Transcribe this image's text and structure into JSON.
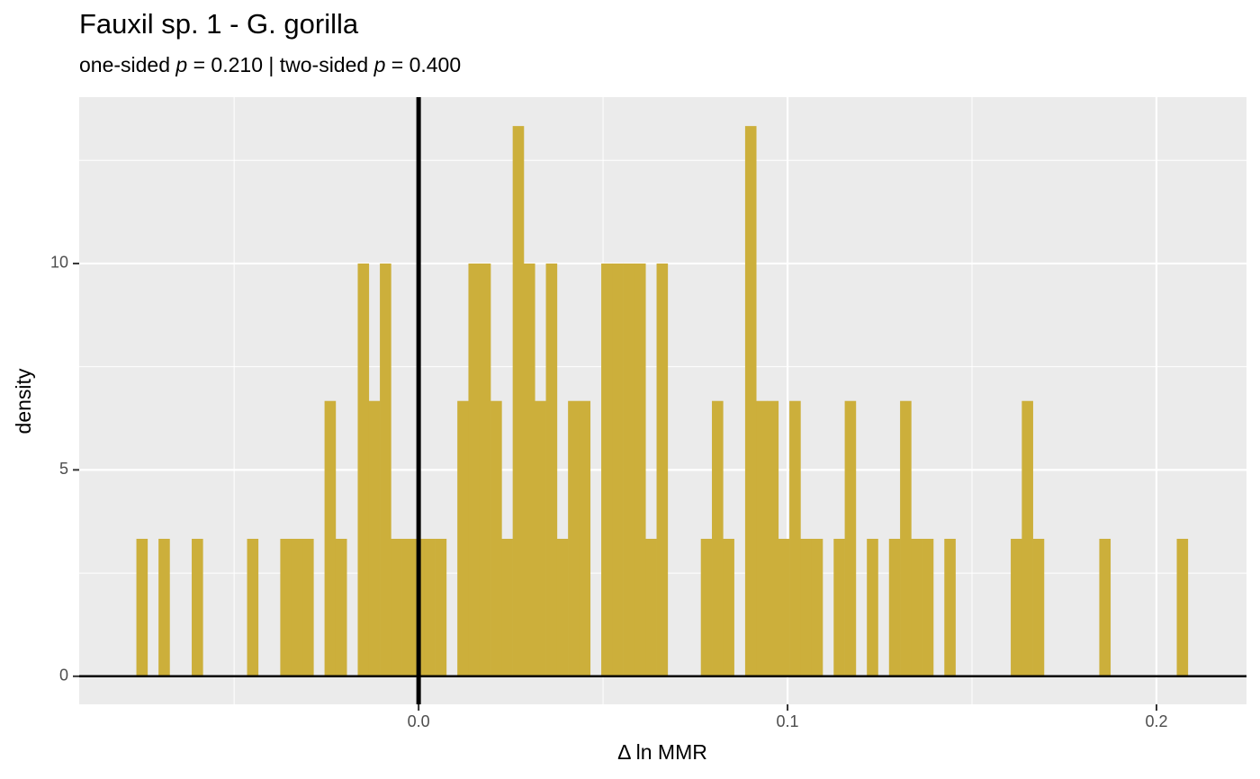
{
  "chart_data": {
    "type": "histogram",
    "title": "Fauxil sp. 1 - G. gorilla",
    "subtitle": [
      {
        "text": "one-sided ",
        "italic": false
      },
      {
        "text": "p",
        "italic": true
      },
      {
        "text": " = 0.210 | two-sided ",
        "italic": false
      },
      {
        "text": "p",
        "italic": true
      },
      {
        "text": " = 0.400",
        "italic": false
      }
    ],
    "x_label": "Δ ln MMR",
    "y_label": "density",
    "color": "#ccaf3b",
    "bins": [
      -0.0765,
      -0.0735,
      -0.0705,
      -0.0675,
      -0.0645,
      -0.0615,
      -0.0585,
      -0.0555,
      -0.0525,
      -0.0495,
      -0.0465,
      -0.0435,
      -0.0405,
      -0.0375,
      -0.0345,
      -0.0315,
      -0.0285,
      -0.0255,
      -0.0225,
      -0.0195,
      -0.0165,
      -0.0135,
      -0.0105,
      -0.0075,
      -0.0045,
      -0.0015,
      0.0015,
      0.0045,
      0.0075,
      0.0105,
      0.0135,
      0.0165,
      0.0195,
      0.0225,
      0.0255,
      0.0285,
      0.0315,
      0.0345,
      0.0375,
      0.0405,
      0.0435,
      0.0465,
      0.0495,
      0.0525,
      0.0555,
      0.0585,
      0.0615,
      0.0645,
      0.0675,
      0.0705,
      0.0735,
      0.0765,
      0.0795,
      0.0825,
      0.0855,
      0.0885,
      0.0915,
      0.0945,
      0.0975,
      0.1005,
      0.1035,
      0.1065,
      0.1095,
      0.1125,
      0.1155,
      0.1185,
      0.1215,
      0.1245,
      0.1275,
      0.1305,
      0.1335,
      0.1365,
      0.1395,
      0.1425,
      0.1455,
      0.1485,
      0.1515,
      0.1545,
      0.1575,
      0.1605,
      0.1635,
      0.1665,
      0.1695,
      0.1725,
      0.1755,
      0.1785,
      0.1815,
      0.1845,
      0.1875,
      0.1905,
      0.1935,
      0.1965,
      0.1995,
      0.2025,
      0.2055,
      0.2085
    ],
    "values": [
      3.33,
      0,
      3.33,
      0,
      0,
      3.33,
      0,
      0,
      0,
      0,
      3.33,
      0,
      0,
      3.33,
      3.33,
      3.33,
      0,
      6.67,
      3.33,
      0,
      10,
      6.67,
      10,
      3.33,
      3.33,
      3.33,
      3.33,
      3.33,
      0,
      6.67,
      10,
      10,
      6.67,
      3.33,
      13.33,
      10,
      6.67,
      10,
      3.33,
      6.67,
      6.67,
      0,
      10,
      10,
      10,
      10,
      3.33,
      10,
      0,
      0,
      0,
      3.33,
      6.67,
      3.33,
      0,
      13.33,
      6.67,
      6.67,
      3.33,
      6.67,
      3.33,
      3.33,
      0,
      3.33,
      6.67,
      0,
      3.33,
      0,
      3.33,
      6.67,
      3.33,
      3.33,
      0,
      3.33,
      0,
      0,
      0,
      0,
      0,
      3.33,
      6.67,
      3.33,
      0,
      0,
      0,
      0,
      0,
      3.33,
      0,
      0,
      0,
      0,
      0,
      0,
      3.33
    ],
    "xlim": [
      -0.092,
      0.2244
    ],
    "ylim": [
      -0.68,
      14.03
    ],
    "xticks": [
      {
        "value": 0,
        "label": "0.0"
      },
      0.1,
      0.2
    ],
    "yticks": [
      0,
      5,
      10
    ],
    "x_minor_ticks": [
      -0.05,
      0.05,
      0.15
    ],
    "y_minor_ticks": [
      2.5,
      7.5,
      12.5
    ],
    "vline": 0,
    "hline": 0,
    "grid": true
  }
}
